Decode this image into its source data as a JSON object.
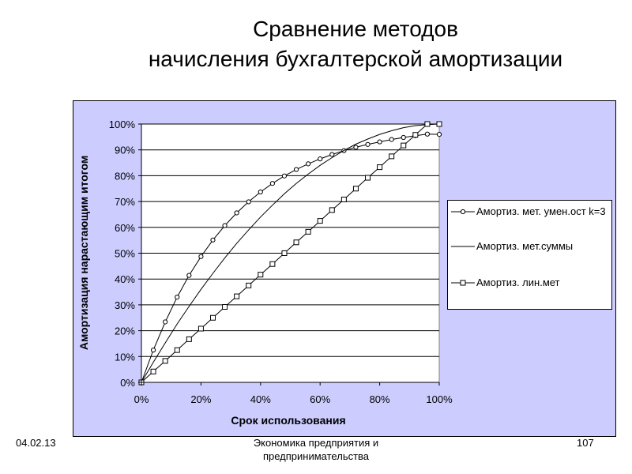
{
  "slide": {
    "title_line1": "Сравнение методов",
    "title_line2": "начисления бухгалтерской амортизации"
  },
  "footer": {
    "date": "04.02.13",
    "center_line1": "Экономика предприятия и",
    "center_line2": "предпринимательства",
    "page": "107"
  },
  "colors": {
    "plot_area": "#ffffff",
    "chart_background": "#ccccff",
    "lines": "#000000"
  },
  "chart_data": {
    "type": "line",
    "title": "",
    "xlabel": "Срок использования",
    "ylabel": "Амортизация нарастающим итогом",
    "xlim": [
      0,
      100
    ],
    "ylim": [
      0,
      100
    ],
    "x_ticks": [
      0,
      20,
      40,
      60,
      80,
      100
    ],
    "y_ticks": [
      0,
      10,
      20,
      30,
      40,
      50,
      60,
      70,
      80,
      90,
      100
    ],
    "tick_format": "percent",
    "grid": {
      "horizontal": true,
      "vertical": false
    },
    "legend_position": "right",
    "series": [
      {
        "name": "Амортиз. мет. умен.ост k=3",
        "marker": "circle",
        "x": [
          0,
          4,
          8,
          12,
          16,
          20,
          24,
          28,
          32,
          36,
          40,
          44,
          48,
          52,
          56,
          60,
          64,
          68,
          72,
          76,
          80,
          84,
          88,
          92,
          96,
          100
        ],
        "y": [
          0,
          12.5,
          23.4,
          33.0,
          41.4,
          48.7,
          55.1,
          60.7,
          65.6,
          69.9,
          73.7,
          77.0,
          79.9,
          82.4,
          84.6,
          86.5,
          88.2,
          89.7,
          91.0,
          92.1,
          93.1,
          94.0,
          94.8,
          95.5,
          96.1,
          96.0
        ]
      },
      {
        "name": "Амортиз. мет.суммы",
        "marker": "none",
        "x": [
          0,
          4,
          8,
          12,
          16,
          20,
          24,
          28,
          32,
          36,
          40,
          44,
          48,
          52,
          56,
          60,
          64,
          68,
          72,
          76,
          80,
          84,
          88,
          92,
          96,
          100
        ],
        "y": [
          0,
          7.8,
          15.3,
          22.6,
          29.4,
          36.0,
          42.2,
          48.2,
          53.8,
          59.0,
          64.0,
          68.6,
          73.0,
          77.0,
          80.6,
          84.0,
          87.0,
          89.8,
          92.2,
          94.2,
          96.0,
          97.4,
          98.6,
          99.4,
          99.8,
          100
        ]
      },
      {
        "name": "Амортиз. лин.мет",
        "marker": "square",
        "x": [
          0,
          4,
          8,
          12,
          16,
          20,
          24,
          28,
          32,
          36,
          40,
          44,
          48,
          52,
          56,
          60,
          64,
          68,
          72,
          76,
          80,
          84,
          88,
          92,
          96,
          100
        ],
        "y": [
          0,
          4.2,
          8.3,
          12.5,
          16.7,
          20.8,
          25.0,
          29.2,
          33.3,
          37.5,
          41.7,
          45.8,
          50.0,
          54.2,
          58.3,
          62.5,
          66.7,
          70.8,
          75.0,
          79.2,
          83.3,
          87.5,
          91.7,
          95.8,
          100,
          100
        ]
      }
    ]
  }
}
